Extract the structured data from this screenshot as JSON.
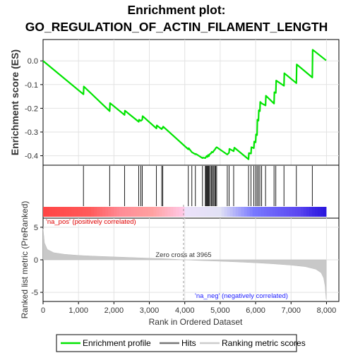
{
  "chart_data": {
    "type": "line",
    "title_line1": "Enrichment plot:",
    "title_line2": "GO_REGULATION_OF_ACTIN_FILAMENT_LENGTH",
    "top_panel": {
      "ylabel": "Enrichment score (ES)",
      "ylim": [
        -0.44,
        0.09
      ],
      "yticks": [
        0.0,
        -0.1,
        -0.2,
        -0.3,
        -0.4
      ],
      "ytick_labels": [
        "0.0",
        "-0.1",
        "-0.2",
        "-0.3",
        "-0.4"
      ],
      "grid": true,
      "series": [
        {
          "name": "Enrichment profile",
          "color": "#00e400",
          "x": [
            0,
            1140,
            1150,
            1880,
            1890,
            2300,
            2310,
            2700,
            2710,
            2760,
            2800,
            2810,
            3200,
            3210,
            3350,
            3360,
            3380,
            3390,
            4100,
            4110,
            4200,
            4300,
            4310,
            4500,
            4510,
            4580,
            4600,
            4620,
            4640,
            4660,
            4680,
            4700,
            4740,
            4760,
            4790,
            4820,
            4850,
            4870,
            4900,
            5200,
            5250,
            5260,
            5380,
            5400,
            5800,
            5810,
            5870,
            5880,
            5950,
            5960,
            6000,
            6010,
            6040,
            6050,
            6080,
            6090,
            6120,
            6130,
            6170,
            6180,
            6280,
            6290,
            6520,
            6530,
            6570,
            6580,
            6800,
            6810,
            7150,
            7160,
            7600,
            7610,
            7990
          ],
          "y": [
            0.0,
            -0.141,
            -0.108,
            -0.212,
            -0.178,
            -0.228,
            -0.21,
            -0.257,
            -0.248,
            -0.253,
            -0.248,
            -0.233,
            -0.285,
            -0.272,
            -0.288,
            -0.283,
            -0.283,
            -0.277,
            -0.373,
            -0.368,
            -0.385,
            -0.394,
            -0.392,
            -0.41,
            -0.408,
            -0.41,
            -0.405,
            -0.401,
            -0.405,
            -0.397,
            -0.402,
            -0.394,
            -0.39,
            -0.384,
            -0.386,
            -0.379,
            -0.374,
            -0.369,
            -0.364,
            -0.395,
            -0.387,
            -0.371,
            -0.381,
            -0.366,
            -0.415,
            -0.389,
            -0.391,
            -0.364,
            -0.368,
            -0.34,
            -0.344,
            -0.31,
            -0.313,
            -0.248,
            -0.252,
            -0.208,
            -0.212,
            -0.173,
            -0.179,
            -0.18,
            -0.188,
            -0.147,
            -0.18,
            -0.132,
            -0.135,
            -0.083,
            -0.105,
            -0.052,
            -0.094,
            -0.015,
            -0.07,
            0.047,
            0.002
          ]
        }
      ]
    },
    "hits_panel": {
      "hit_positions": [
        1140,
        1880,
        2300,
        2700,
        2760,
        2800,
        3200,
        3350,
        3380,
        4100,
        4200,
        4300,
        4500,
        4580,
        4600,
        4620,
        4640,
        4660,
        4680,
        4700,
        4740,
        4760,
        4790,
        4820,
        4850,
        4870,
        4900,
        5200,
        5250,
        5380,
        5800,
        5870,
        5950,
        6000,
        6040,
        6080,
        6120,
        6170,
        6280,
        6520,
        6570,
        6800,
        7150,
        7600
      ]
    },
    "metric_panel": {
      "ylabel": "Ranked list metric (PreRanked)",
      "xlabel": "Rank in Ordered Dataset",
      "ylim": [
        -6.4,
        6.4
      ],
      "yticks": [
        5,
        0,
        -5
      ],
      "ytick_labels": [
        "5",
        "0",
        "-5"
      ],
      "xlim": [
        0,
        8350
      ],
      "xticks": [
        0,
        1000,
        2000,
        3000,
        4000,
        5000,
        6000,
        7000,
        8000
      ],
      "xtick_labels": [
        "0",
        "1,000",
        "2,000",
        "3,000",
        "4,000",
        "5,000",
        "6,000",
        "7,000",
        "8,000"
      ],
      "profile_x": [
        0,
        40,
        120,
        300,
        600,
        1000,
        1500,
        2000,
        2500,
        3000,
        3500,
        3965,
        4500,
        5000,
        5500,
        6000,
        6500,
        7000,
        7400,
        7700,
        7850,
        7920,
        7960,
        7990
      ],
      "profile_y": [
        4.8,
        2.6,
        1.6,
        1.1,
        0.85,
        0.68,
        0.55,
        0.45,
        0.35,
        0.25,
        0.15,
        0.0,
        -0.12,
        -0.22,
        -0.33,
        -0.46,
        -0.62,
        -0.82,
        -1.05,
        -1.45,
        -2.0,
        -2.8,
        -4.0,
        -6.0
      ],
      "zero_cross_label": "Zero cross at 3965",
      "zero_cross": 3965,
      "pos_label": "'na_pos' (positively correlated)",
      "neg_label": "'na_neg' (negatively correlated)"
    },
    "legend": {
      "items": [
        {
          "label": "Enrichment profile",
          "color": "#00e400"
        },
        {
          "label": "Hits",
          "color": "#777777"
        },
        {
          "label": "Ranking metric scores",
          "color": "#cccccc"
        }
      ]
    }
  }
}
